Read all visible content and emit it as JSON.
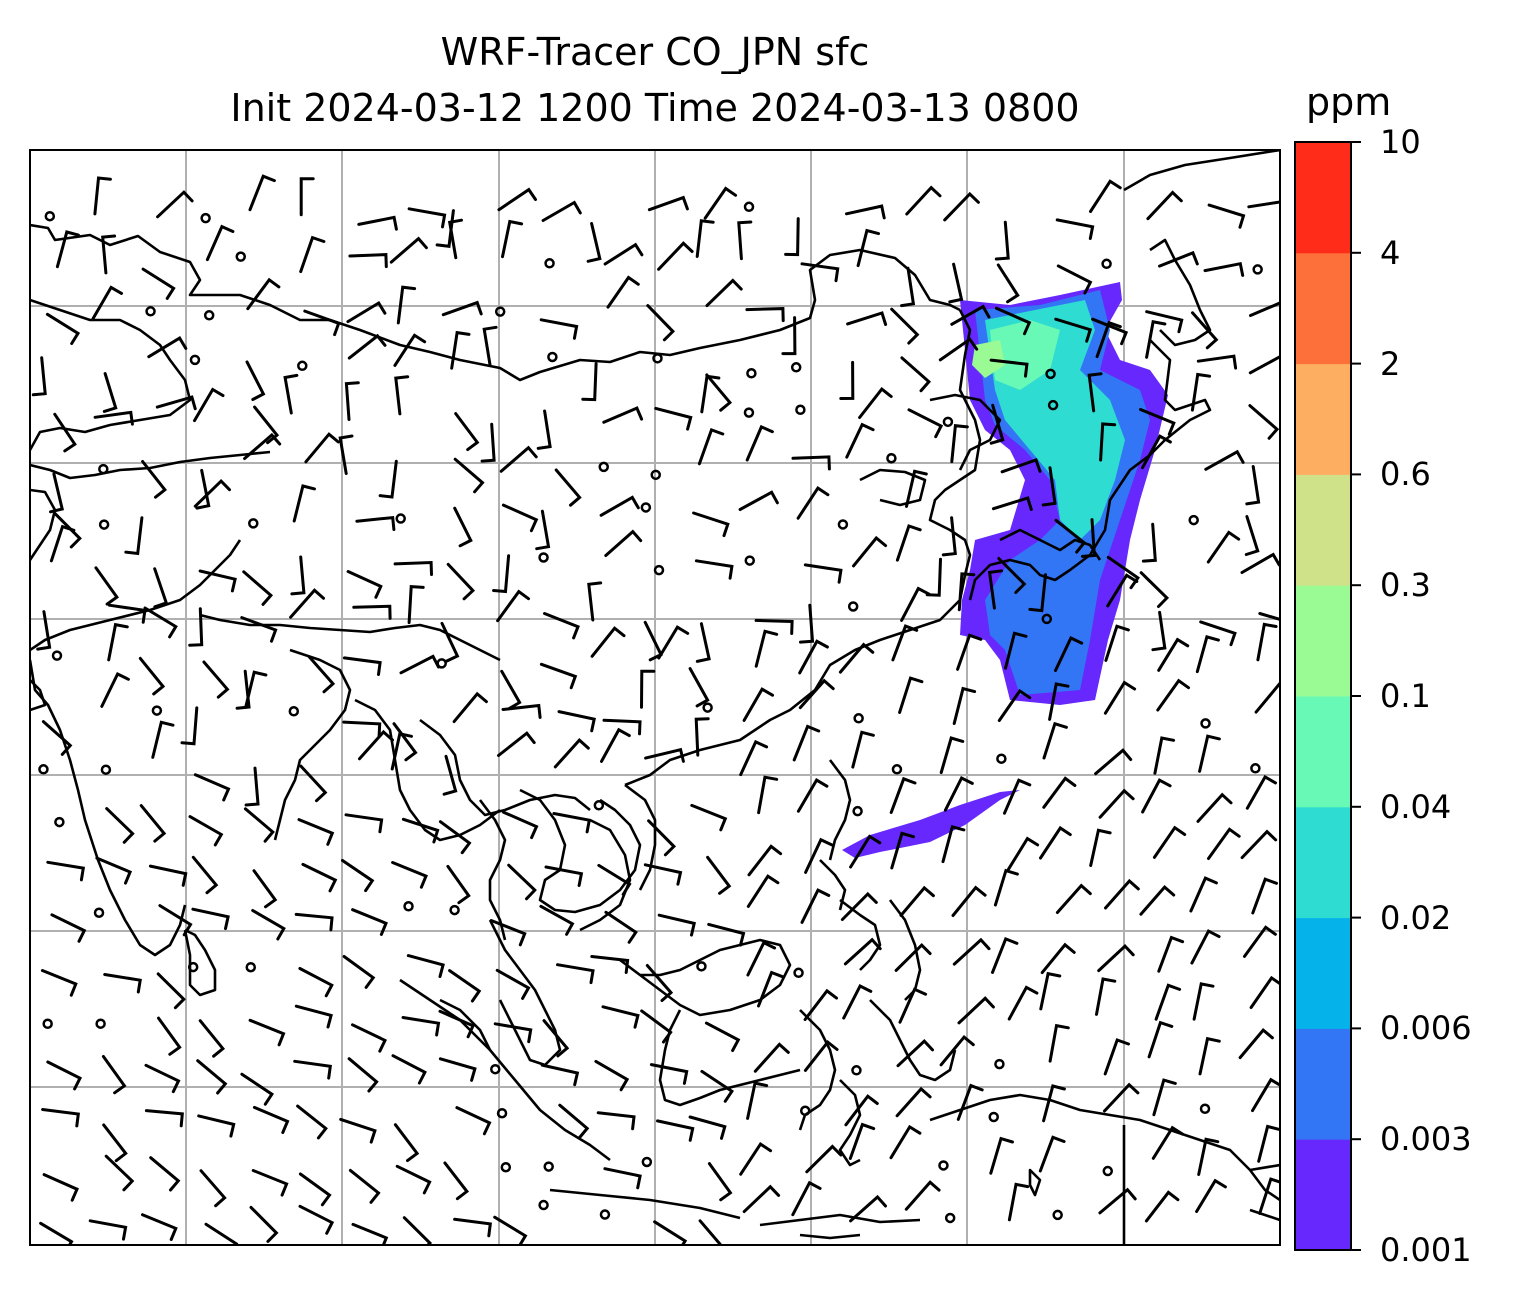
{
  "title": {
    "line1": "WRF-Tracer CO_JPN sfc",
    "line2": "Init 2024-03-12 1200 Time 2024-03-13 0800"
  },
  "colorbar": {
    "label": "ppm",
    "ticks": [
      "0.001",
      "0.003",
      "0.006",
      "0.02",
      "0.04",
      "0.1",
      "0.3",
      "0.6",
      "2",
      "4",
      "10"
    ],
    "colors": [
      "#6628fc",
      "#3275f5",
      "#05b2ea",
      "#2fdcd1",
      "#67f9b5",
      "#9afa93",
      "#cfe28a",
      "#feae60",
      "#fe7039",
      "#fe2c18"
    ]
  },
  "map": {
    "gridlines": true,
    "coastlines": true,
    "wind_barbs": true,
    "tracer_plume": "east of Japan, extending from northern Japan south to the Philippine Sea"
  }
}
